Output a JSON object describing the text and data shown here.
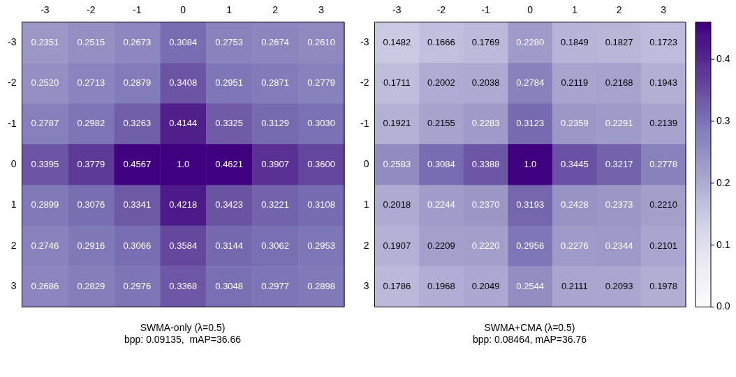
{
  "chart_data": [
    {
      "type": "heatmap",
      "title": "SWMA-only (λ=0.5)",
      "subtitle": "bpp: 0.09135,  mAP=36.66",
      "categories": [
        "-3",
        "-2",
        "-1",
        "0",
        "1",
        "2",
        "3"
      ],
      "y_categories": [
        "-3",
        "-2",
        "-1",
        "0",
        "1",
        "2",
        "3"
      ],
      "cells": [
        [
          0.2351,
          0.2515,
          0.2673,
          0.3084,
          0.2753,
          0.2674,
          0.261
        ],
        [
          0.252,
          0.2713,
          0.2879,
          0.3408,
          0.2951,
          0.2871,
          0.2779
        ],
        [
          0.2787,
          0.2982,
          0.3263,
          0.4144,
          0.3325,
          0.3129,
          0.303
        ],
        [
          0.3395,
          0.3779,
          0.4567,
          1.0,
          0.4621,
          0.3907,
          0.36
        ],
        [
          0.2899,
          0.3076,
          0.3341,
          0.4218,
          0.3423,
          0.3221,
          0.3108
        ],
        [
          0.2746,
          0.2916,
          0.3066,
          0.3584,
          0.3144,
          0.3062,
          0.2953
        ],
        [
          0.2686,
          0.2829,
          0.2976,
          0.3368,
          0.3048,
          0.2977,
          0.2898
        ]
      ],
      "cell_labels": [
        [
          "0.2351",
          "0.2515",
          "0.2673",
          "0.3084",
          "0.2753",
          "0.2674",
          "0.2610"
        ],
        [
          "0.2520",
          "0.2713",
          "0.2879",
          "0.3408",
          "0.2951",
          "0.2871",
          "0.2779"
        ],
        [
          "0.2787",
          "0.2982",
          "0.3263",
          "0.4144",
          "0.3325",
          "0.3129",
          "0.3030"
        ],
        [
          "0.3395",
          "0.3779",
          "0.4567",
          "1.0",
          "0.4621",
          "0.3907",
          "0.3600"
        ],
        [
          "0.2899",
          "0.3076",
          "0.3341",
          "0.4218",
          "0.3423",
          "0.3221",
          "0.3108"
        ],
        [
          "0.2746",
          "0.2916",
          "0.3066",
          "0.3584",
          "0.3144",
          "0.3062",
          "0.2953"
        ],
        [
          "0.2686",
          "0.2829",
          "0.2976",
          "0.3368",
          "0.3048",
          "0.2977",
          "0.2898"
        ]
      ]
    },
    {
      "type": "heatmap",
      "title": "SWMA+CMA (λ=0.5)",
      "subtitle": "bpp: 0.08464, mAP=36.76",
      "categories": [
        "-3",
        "-2",
        "-1",
        "0",
        "1",
        "2",
        "3"
      ],
      "y_categories": [
        "-3",
        "-2",
        "-1",
        "0",
        "1",
        "2",
        "3"
      ],
      "cells": [
        [
          0.1482,
          0.1666,
          0.1769,
          0.228,
          0.1849,
          0.1827,
          0.1723
        ],
        [
          0.1711,
          0.2002,
          0.2038,
          0.2784,
          0.2119,
          0.2168,
          0.1943
        ],
        [
          0.1921,
          0.2155,
          0.2283,
          0.3123,
          0.2359,
          0.2291,
          0.2139
        ],
        [
          0.2583,
          0.3084,
          0.3388,
          1.0,
          0.3445,
          0.3217,
          0.2778
        ],
        [
          0.2018,
          0.2244,
          0.237,
          0.3193,
          0.2428,
          0.2373,
          0.221
        ],
        [
          0.1907,
          0.2209,
          0.222,
          0.2956,
          0.2276,
          0.2344,
          0.2101
        ],
        [
          0.1786,
          0.1968,
          0.2049,
          0.2544,
          0.2111,
          0.2093,
          0.1978
        ]
      ],
      "cell_labels": [
        [
          "0.1482",
          "0.1666",
          "0.1769",
          "0.2280",
          "0.1849",
          "0.1827",
          "0.1723"
        ],
        [
          "0.1711",
          "0.2002",
          "0.2038",
          "0.2784",
          "0.2119",
          "0.2168",
          "0.1943"
        ],
        [
          "0.1921",
          "0.2155",
          "0.2283",
          "0.3123",
          "0.2359",
          "0.2291",
          "0.2139"
        ],
        [
          "0.2583",
          "0.3084",
          "0.3388",
          "1.0",
          "0.3445",
          "0.3217",
          "0.2778"
        ],
        [
          "0.2018",
          "0.2244",
          "0.2370",
          "0.3193",
          "0.2428",
          "0.2373",
          "0.2210"
        ],
        [
          "0.1907",
          "0.2209",
          "0.2220",
          "0.2956",
          "0.2276",
          "0.2344",
          "0.2101"
        ],
        [
          "0.1786",
          "0.1968",
          "0.2049",
          "0.2544",
          "0.2111",
          "0.2093",
          "0.1978"
        ]
      ],
      "clim": [
        0,
        0.46
      ],
      "cticks": [
        {
          "value": 0,
          "label": "0.0"
        },
        0.1,
        0.2,
        0.3,
        0.4
      ]
    }
  ]
}
